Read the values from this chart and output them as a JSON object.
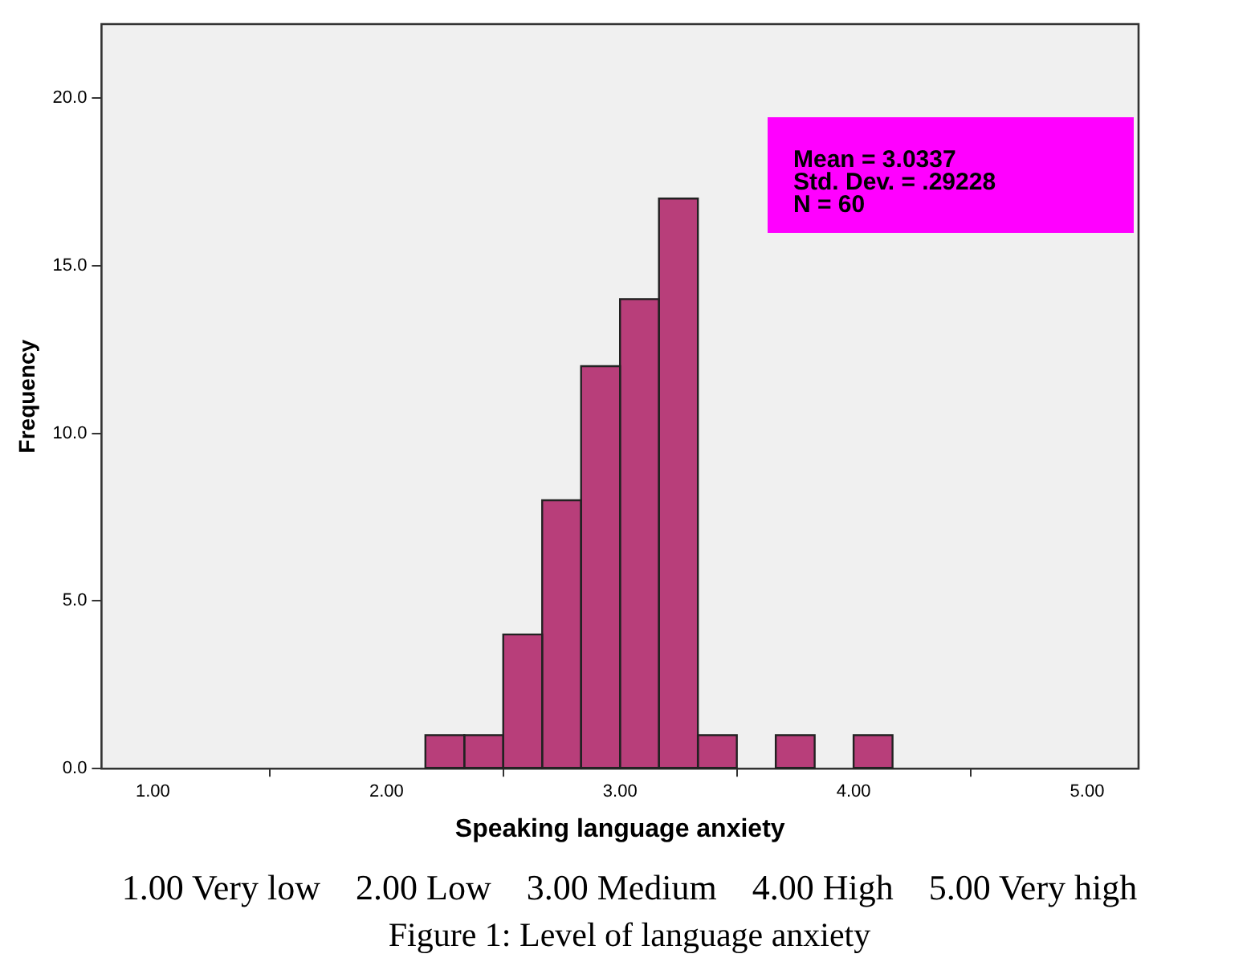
{
  "chart_data": {
    "type": "histogram",
    "xlabel": "Speaking language anxiety",
    "ylabel": "Frequency",
    "bins": [
      2.1667,
      2.3333,
      2.5,
      2.6667,
      2.8333,
      3.0,
      3.1667,
      3.3333,
      3.5,
      3.6667,
      3.8333,
      4.0,
      4.1667
    ],
    "values": [
      1,
      1,
      4,
      8,
      12,
      14,
      17,
      1,
      0,
      1,
      0,
      1
    ],
    "color": "#b83e7a",
    "xlim": [
      0.78,
      5.22
    ],
    "xticks": [
      {
        "value": 1,
        "label": "1.00"
      },
      {
        "value": 2,
        "label": "2.00"
      },
      {
        "value": 3,
        "label": "3.00"
      },
      {
        "value": 4,
        "label": "4.00"
      },
      {
        "value": 5,
        "label": "5.00"
      }
    ],
    "ylim": [
      0,
      22.2
    ],
    "yticks": [
      {
        "value": 0,
        "label": "0.0"
      },
      {
        "value": 5,
        "label": "5.0"
      },
      {
        "value": 10,
        "label": "10.0"
      },
      {
        "value": 15,
        "label": "15.0"
      },
      {
        "value": 20,
        "label": "20.0"
      }
    ],
    "grid": false,
    "legend": false,
    "annotations": [
      "Mean = 3.0337",
      "Std. Dev. = .29228",
      "N = 60",
      "1.00 Very low    2.00 Low    3.00 Medium    4.00 High    5.00 Very high",
      "Figure 1: Level of language anxiety"
    ]
  }
}
